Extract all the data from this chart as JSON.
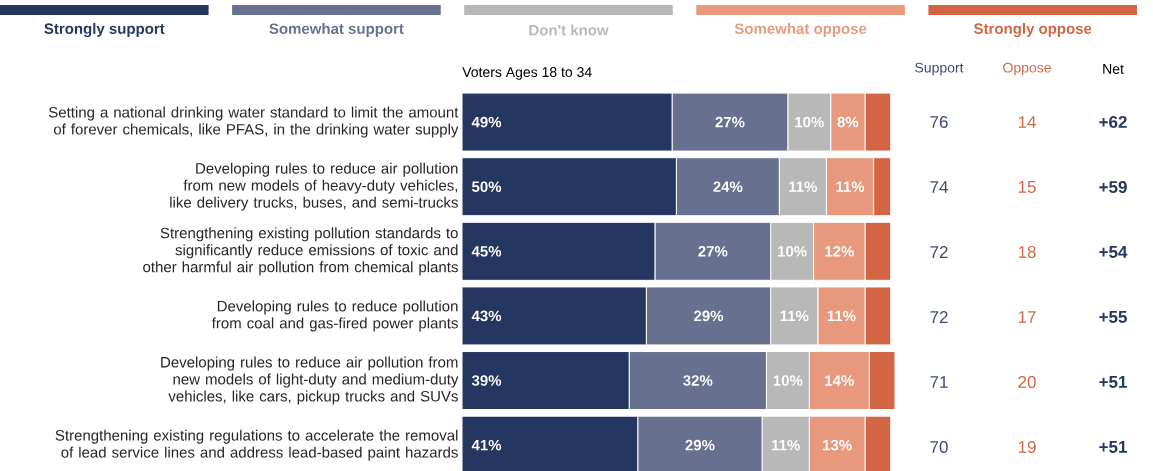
{
  "chart_data": {
    "type": "bar",
    "orientation": "horizontal",
    "stacked": true,
    "legend": "top",
    "subtitle": "Voters Ages 18 to 34",
    "annotations": [
      "Support",
      "Oppose",
      "Net",
      "76",
      "14",
      "+62",
      "74",
      "15",
      "+59",
      "72",
      "18",
      "+54",
      "72",
      "17",
      "+55",
      "71",
      "20",
      "+51",
      "70",
      "19",
      "+51"
    ],
    "categories": [
      "Setting a national drinking water standard to limit the amount of forever chemicals, like PFAS, in the drinking water supply",
      "Developing rules to reduce air pollution from new models of heavy-duty vehicles, like delivery trucks, buses, and semi-trucks",
      "Strengthening existing pollution standards to significantly reduce emissions of toxic and other harmful air pollution from chemical plants",
      "Developing rules to reduce pollution from coal and gas-fired power plants",
      "Developing rules to reduce air pollution from new models of light-duty and medium-duty vehicles, like cars, pickup trucks and SUVs",
      "Strengthening existing regulations to accelerate the removal of lead service lines and address lead-based paint hazards"
    ],
    "series": [
      {
        "name": "Strongly support",
        "color": "#253760",
        "values": [
          49,
          50,
          45,
          43,
          39,
          41
        ],
        "value_labels": [
          "49%",
          "50%",
          "45%",
          "43%",
          "39%",
          "41%"
        ]
      },
      {
        "name": "Somewhat support",
        "color": "#67718f",
        "values": [
          27,
          24,
          27,
          29,
          32,
          29
        ],
        "value_labels": [
          "27%",
          "24%",
          "27%",
          "29%",
          "32%",
          "29%"
        ]
      },
      {
        "name": "Don't know",
        "color": "#b8b8b8",
        "values": [
          10,
          11,
          10,
          11,
          10,
          11
        ],
        "value_labels": [
          "10%",
          "11%",
          "10%",
          "11%",
          "10%",
          "11%"
        ]
      },
      {
        "name": "Somewhat oppose",
        "color": "#e8987c",
        "values": [
          8,
          11,
          12,
          11,
          14,
          13
        ],
        "value_labels": [
          "8%",
          "11%",
          "12%",
          "11%",
          "14%",
          "13%"
        ]
      },
      {
        "name": "Strongly oppose",
        "color": "#d26543",
        "values": [
          6,
          4,
          6,
          6,
          6,
          6
        ]
      }
    ]
  }
}
